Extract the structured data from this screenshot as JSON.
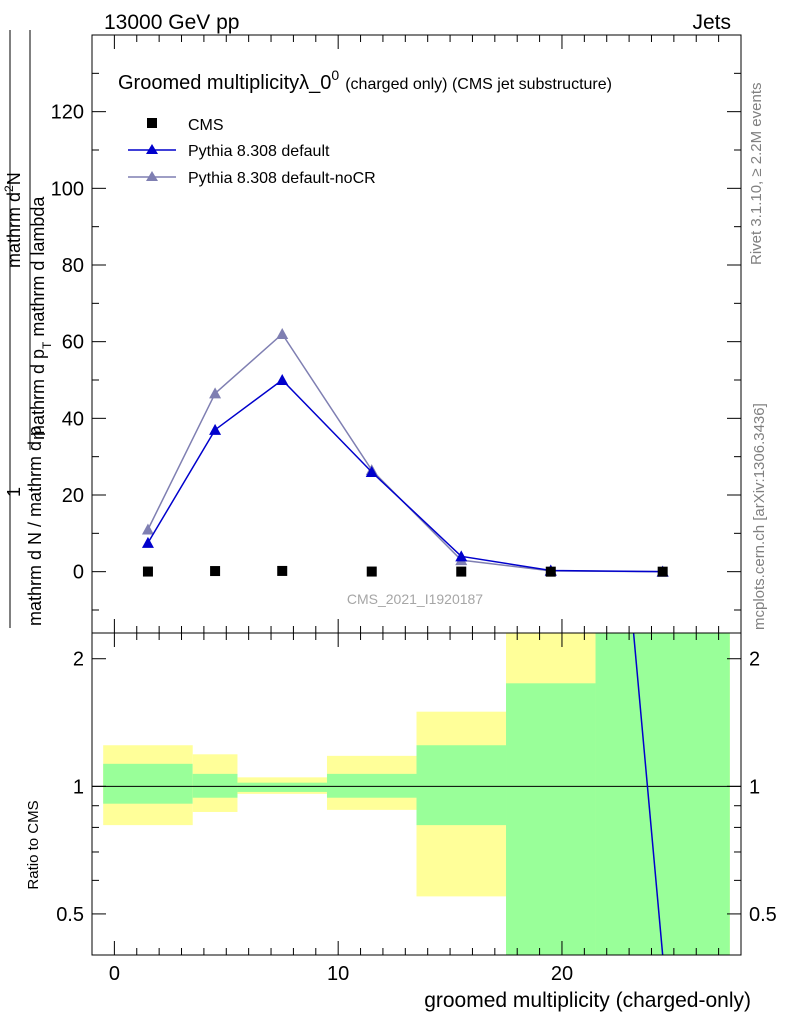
{
  "header": {
    "left": "13000 GeV pp",
    "right": "Jets"
  },
  "side_labels": {
    "rivet": "Rivet 3.1.10, ≥ 2.2M events",
    "mcplots": "mcplots.cern.ch [arXiv:1306.3436]"
  },
  "chart_data": [
    {
      "type": "line",
      "title_main": "Groomed multiplicityλ_0",
      "title_sup": "0",
      "title_note": "(charged only) (CMS jet substructure)",
      "ylabel_numerator": "1",
      "ylabel_denominator": "mathrm d N / mathrm d p",
      "ylabel_full": "mathrm d N / mathrm d p_T mathrm d p_T mathrm d lambda",
      "ylabel_num_text": "mathrm d",
      "ylabel_num_sup": "2",
      "ylabel_num_end": "N",
      "ylabel_den_1": "mathrm d p",
      "ylabel_den_sub": "T",
      "ylabel_den_2": " mathrm d lambda",
      "watermark": "CMS_2021_I1920187",
      "xlim": [
        -1,
        28
      ],
      "ylim": [
        -16,
        140
      ],
      "yticks": [
        0,
        20,
        40,
        60,
        80,
        100,
        120
      ],
      "yticklabels": [
        "0",
        "20",
        "40",
        "60",
        "80",
        "100",
        "120"
      ],
      "legend_position": "top-left",
      "series": [
        {
          "name": "CMS",
          "color": "#000000",
          "marker": "square",
          "x": [
            1.5,
            4.5,
            7.5,
            11.5,
            15.5,
            19.5,
            24.5
          ],
          "y": [
            0.03,
            0.16,
            0.19,
            0.03,
            0.02,
            0.002,
            0.0001
          ]
        },
        {
          "name": "Pythia 8.308 default",
          "color": "#0000cc",
          "marker": "triangle",
          "x": [
            1.5,
            4.5,
            7.5,
            11.5,
            15.5,
            19.5,
            24.5
          ],
          "y": [
            7.5,
            37,
            50,
            26,
            4,
            0.3,
            0.01
          ]
        },
        {
          "name": "Pythia 8.308 default-noCR",
          "color": "#7f7fb2",
          "marker": "triangle",
          "x": [
            1.5,
            4.5,
            7.5,
            11.5,
            15.5,
            19.5,
            24.5
          ],
          "y": [
            11,
            46.5,
            62,
            26.5,
            3,
            0.2,
            0.005
          ]
        }
      ]
    },
    {
      "type": "area",
      "ylabel": "Ratio to CMS",
      "xlabel": "groomed multiplicity (charged-only)",
      "xlim": [
        -1,
        28
      ],
      "ylim": [
        0.4,
        2.3
      ],
      "yscale": "log",
      "xticks": [
        0,
        10,
        20
      ],
      "xticklabels": [
        "0",
        "10",
        "20"
      ],
      "yticks": [
        0.5,
        1,
        2
      ],
      "yticklabels": [
        "0.5",
        "1",
        "2"
      ],
      "reference_line": 1,
      "bins": [
        {
          "lo": -0.5,
          "hi": 3.5,
          "stat_lo": 0.91,
          "stat_hi": 1.13,
          "tot_lo": 0.81,
          "tot_hi": 1.25
        },
        {
          "lo": 3.5,
          "hi": 5.5,
          "stat_lo": 0.94,
          "stat_hi": 1.07,
          "tot_lo": 0.87,
          "tot_hi": 1.19
        },
        {
          "lo": 5.5,
          "hi": 9.5,
          "stat_lo": 0.97,
          "stat_hi": 1.02,
          "tot_lo": 0.96,
          "tot_hi": 1.05
        },
        {
          "lo": 9.5,
          "hi": 13.5,
          "stat_lo": 0.94,
          "stat_hi": 1.07,
          "tot_lo": 0.88,
          "tot_hi": 1.18
        },
        {
          "lo": 13.5,
          "hi": 17.5,
          "stat_lo": 0.81,
          "stat_hi": 1.25,
          "tot_lo": 0.55,
          "tot_hi": 1.5
        },
        {
          "lo": 17.5,
          "hi": 21.5,
          "stat_lo": 0.3,
          "stat_hi": 1.75,
          "tot_lo": 0.3,
          "tot_hi": 3.0
        },
        {
          "lo": 21.5,
          "hi": 27.5,
          "stat_lo": 0.3,
          "stat_hi": 3.0,
          "tot_lo": 0.3,
          "tot_hi": 3.0
        }
      ],
      "ratio_line": {
        "color": "#0000cc",
        "x": [
          23.2,
          24.5
        ],
        "y": [
          2.3,
          0.4
        ]
      }
    }
  ]
}
